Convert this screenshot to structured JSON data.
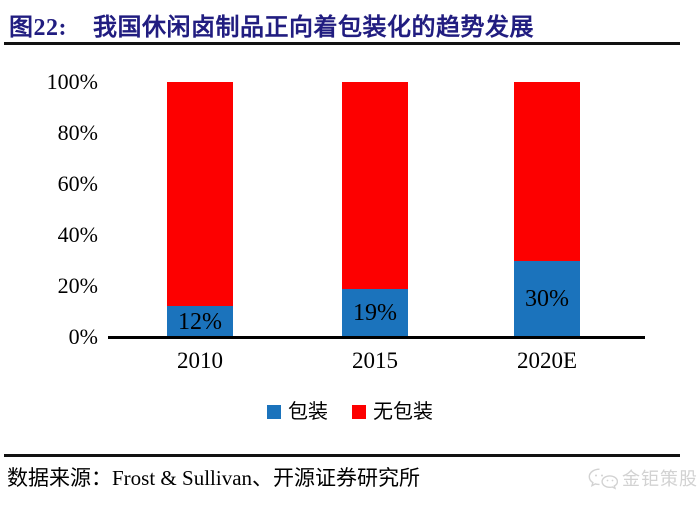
{
  "title": {
    "tag": "图22:",
    "text": "我国休闲卤制品正向着包装化的趋势发展"
  },
  "colors": {
    "title": "#211D80",
    "packaged_blue": "#1B73BC",
    "unpackaged_red": "#FD0000",
    "axis": "#000000",
    "watermark_gray": "#D2D2D2"
  },
  "chart_data": {
    "type": "bar",
    "stacked": true,
    "title": "我国休闲卤制品正向着包装化的趋势发展",
    "categories": [
      "2010",
      "2015",
      "2020E"
    ],
    "series": [
      {
        "name": "包装",
        "color": "#1B73BC",
        "values": [
          12,
          19,
          30
        ],
        "labels": [
          "12%",
          "19%",
          "30%"
        ]
      },
      {
        "name": "无包装",
        "color": "#FD0000",
        "values": [
          88,
          81,
          70
        ],
        "labels": null
      }
    ],
    "xlabel": "",
    "ylabel": "",
    "ylim": [
      0,
      100
    ],
    "y_ticks": [
      "0%",
      "20%",
      "40%",
      "60%",
      "80%",
      "100%"
    ],
    "grid": false,
    "legend_position": "bottom"
  },
  "footer": {
    "source": "数据来源：Frost & Sullivan、开源证券研究所",
    "watermark": "金钜策股"
  }
}
